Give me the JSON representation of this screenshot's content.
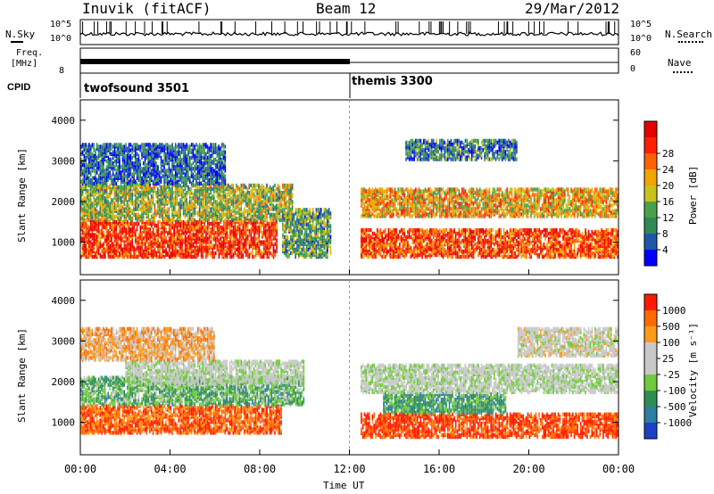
{
  "header": {
    "station": "Inuvik (fitACF)",
    "beam": "Beam 12",
    "date": "29/Mar/2012"
  },
  "strips": {
    "nsky_label": "N.Sky",
    "nsky_ticks": [
      "10^5",
      "10^0"
    ],
    "nsearch_label": "N.Search",
    "nsearch_ticks": [
      "10^5",
      "10^0"
    ],
    "freq_label_top": "Freq.",
    "freq_label_bottom": "[MHz]",
    "freq_tick": "8",
    "nave_label": "Nave",
    "nave_ticks": [
      "60",
      "0"
    ],
    "cpid_label": "CPID",
    "cpid_modes": [
      "twofsound 3501",
      "themis 3300"
    ]
  },
  "legend_colors": {
    "power": [
      "#0000ff",
      "#1e57a8",
      "#2f8a56",
      "#49a24a",
      "#c9c21d",
      "#f0a500",
      "#ff6000",
      "#ff2000",
      "#e60000"
    ],
    "velocity": [
      "#1e3fc8",
      "#2d7da4",
      "#2e8f55",
      "#6fcb3b",
      "#c8c8c8",
      "#c8c8c8",
      "#ff9a18",
      "#ff6a00",
      "#ff1a00"
    ]
  },
  "chart_data": [
    {
      "type": "heatmap",
      "quantity": "Power",
      "ylabel": "Slant Range [km]",
      "xlabel": "Time UT",
      "x_ticks": [
        "00:00",
        "04:00",
        "08:00",
        "12:00",
        "16:00",
        "20:00",
        "00:00"
      ],
      "y_ticks": [
        1000,
        2000,
        3000,
        4000
      ],
      "ylim": [
        200,
        4500
      ],
      "colorbar": {
        "label": "Power [dB]",
        "ticks": [
          4,
          8,
          12,
          16,
          20,
          24,
          28
        ]
      },
      "regions": [
        {
          "t0": 0.0,
          "t1": 8.8,
          "r0": 600,
          "r1": 1500,
          "level": 0.85
        },
        {
          "t0": 0.0,
          "t1": 9.5,
          "r0": 1500,
          "r1": 2400,
          "level": 0.45
        },
        {
          "t0": 0.0,
          "t1": 6.5,
          "r0": 2400,
          "r1": 3400,
          "level": 0.2
        },
        {
          "t0": 9.0,
          "t1": 11.2,
          "r0": 600,
          "r1": 1800,
          "level": 0.35
        },
        {
          "t0": 12.5,
          "t1": 24.0,
          "r0": 600,
          "r1": 1300,
          "level": 0.8
        },
        {
          "t0": 12.5,
          "t1": 24.0,
          "r0": 1600,
          "r1": 2300,
          "level": 0.6
        },
        {
          "t0": 14.5,
          "t1": 19.5,
          "r0": 3000,
          "r1": 3500,
          "level": 0.25
        }
      ]
    },
    {
      "type": "heatmap",
      "quantity": "Velocity",
      "ylabel": "Slant Range [km]",
      "xlabel": "Time UT",
      "x_ticks": [
        "00:00",
        "04:00",
        "08:00",
        "12:00",
        "16:00",
        "20:00",
        "00:00"
      ],
      "y_ticks": [
        1000,
        2000,
        3000,
        4000
      ],
      "ylim": [
        200,
        4500
      ],
      "colorbar": {
        "label": "Velocity [m s⁻¹]",
        "ticks": [
          1000,
          500,
          100,
          25,
          -25,
          -100,
          -500,
          -1000
        ]
      },
      "regions": [
        {
          "t0": 0.0,
          "t1": 9.0,
          "r0": 700,
          "r1": 1400,
          "level": -0.7
        },
        {
          "t0": 0.0,
          "t1": 10.0,
          "r0": 1400,
          "r1": 2100,
          "level": 0.3
        },
        {
          "t0": 2.0,
          "t1": 10.0,
          "r0": 1900,
          "r1": 2500,
          "level": 0.0
        },
        {
          "t0": 0.0,
          "t1": 6.0,
          "r0": 2500,
          "r1": 3300,
          "level": -0.4
        },
        {
          "t0": 12.5,
          "t1": 24.0,
          "r0": 600,
          "r1": 1200,
          "level": -0.8
        },
        {
          "t0": 13.5,
          "t1": 19.0,
          "r0": 1200,
          "r1": 1700,
          "level": 0.4
        },
        {
          "t0": 12.5,
          "t1": 24.0,
          "r0": 1700,
          "r1": 2400,
          "level": 0.0
        },
        {
          "t0": 19.5,
          "t1": 24.0,
          "r0": 2600,
          "r1": 3300,
          "level": -0.1
        }
      ]
    }
  ]
}
